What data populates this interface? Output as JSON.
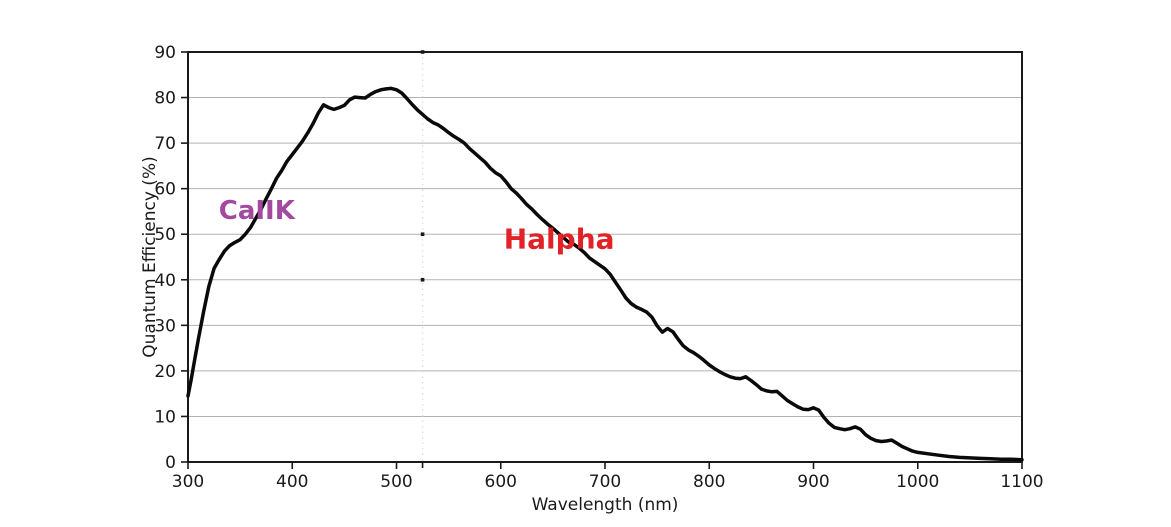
{
  "figure": {
    "background": "#ffffff"
  },
  "chart_data": {
    "type": "line",
    "title": "",
    "xlabel": "Wavelength (nm)",
    "ylabel": "Quantum Efficiency (%)",
    "xlim": [
      300,
      1100
    ],
    "ylim": [
      0,
      90
    ],
    "x_ticks": [
      300,
      400,
      500,
      600,
      700,
      800,
      900,
      1000,
      1100
    ],
    "y_ticks": [
      0,
      10,
      20,
      30,
      40,
      50,
      60,
      70,
      80,
      90
    ],
    "grid": "horizontal-only",
    "grid_color": "#b3b3b3",
    "axis_color": "#1a1a1a",
    "legend": "none",
    "series": [
      {
        "name": "Quantum Efficiency",
        "color": "#0a0a0a",
        "points": [
          [
            300,
            14.5
          ],
          [
            303,
            18
          ],
          [
            306,
            22
          ],
          [
            310,
            27
          ],
          [
            315,
            33
          ],
          [
            320,
            38.5
          ],
          [
            325,
            42.5
          ],
          [
            330,
            44.5
          ],
          [
            335,
            46.3
          ],
          [
            340,
            47.5
          ],
          [
            345,
            48.2
          ],
          [
            350,
            48.8
          ],
          [
            355,
            50
          ],
          [
            360,
            51.5
          ],
          [
            365,
            53.5
          ],
          [
            370,
            55.5
          ],
          [
            375,
            57.8
          ],
          [
            380,
            60
          ],
          [
            385,
            62.3
          ],
          [
            390,
            64
          ],
          [
            395,
            66
          ],
          [
            400,
            67.5
          ],
          [
            405,
            69
          ],
          [
            410,
            70.5
          ],
          [
            415,
            72.3
          ],
          [
            420,
            74.3
          ],
          [
            425,
            76.6
          ],
          [
            430,
            78.4
          ],
          [
            435,
            77.8
          ],
          [
            440,
            77.4
          ],
          [
            445,
            77.8
          ],
          [
            450,
            78.3
          ],
          [
            455,
            79.5
          ],
          [
            460,
            80.1
          ],
          [
            465,
            80
          ],
          [
            470,
            79.9
          ],
          [
            475,
            80.7
          ],
          [
            480,
            81.3
          ],
          [
            485,
            81.7
          ],
          [
            490,
            81.9
          ],
          [
            495,
            82
          ],
          [
            500,
            81.7
          ],
          [
            505,
            81
          ],
          [
            510,
            79.8
          ],
          [
            515,
            78.5
          ],
          [
            520,
            77.3
          ],
          [
            525,
            76.3
          ],
          [
            530,
            75.3
          ],
          [
            535,
            74.5
          ],
          [
            540,
            74
          ],
          [
            545,
            73.2
          ],
          [
            550,
            72.3
          ],
          [
            555,
            71.5
          ],
          [
            560,
            70.8
          ],
          [
            565,
            70
          ],
          [
            570,
            68.8
          ],
          [
            575,
            67.8
          ],
          [
            580,
            66.8
          ],
          [
            585,
            65.8
          ],
          [
            590,
            64.5
          ],
          [
            595,
            63.5
          ],
          [
            600,
            62.8
          ],
          [
            605,
            61.5
          ],
          [
            610,
            60
          ],
          [
            615,
            59
          ],
          [
            620,
            57.8
          ],
          [
            625,
            56.5
          ],
          [
            630,
            55.5
          ],
          [
            635,
            54.3
          ],
          [
            640,
            53.2
          ],
          [
            645,
            52.2
          ],
          [
            650,
            51.3
          ],
          [
            655,
            50.3
          ],
          [
            660,
            49.3
          ],
          [
            665,
            48.3
          ],
          [
            670,
            47.8
          ],
          [
            675,
            47
          ],
          [
            680,
            46
          ],
          [
            685,
            44.8
          ],
          [
            690,
            44
          ],
          [
            695,
            43.2
          ],
          [
            700,
            42.4
          ],
          [
            705,
            41.2
          ],
          [
            710,
            39.5
          ],
          [
            715,
            37.8
          ],
          [
            720,
            36
          ],
          [
            725,
            34.8
          ],
          [
            730,
            34
          ],
          [
            735,
            33.5
          ],
          [
            740,
            32.9
          ],
          [
            745,
            31.8
          ],
          [
            750,
            29.9
          ],
          [
            755,
            28.5
          ],
          [
            760,
            29.3
          ],
          [
            765,
            28.6
          ],
          [
            770,
            27
          ],
          [
            775,
            25.5
          ],
          [
            780,
            24.6
          ],
          [
            785,
            24
          ],
          [
            790,
            23.2
          ],
          [
            795,
            22.3
          ],
          [
            800,
            21.3
          ],
          [
            805,
            20.5
          ],
          [
            810,
            19.8
          ],
          [
            815,
            19.2
          ],
          [
            820,
            18.7
          ],
          [
            825,
            18.4
          ],
          [
            830,
            18.3
          ],
          [
            835,
            18.7
          ],
          [
            840,
            17.9
          ],
          [
            845,
            17
          ],
          [
            850,
            16
          ],
          [
            855,
            15.6
          ],
          [
            860,
            15.4
          ],
          [
            865,
            15.5
          ],
          [
            870,
            14.5
          ],
          [
            875,
            13.5
          ],
          [
            880,
            12.8
          ],
          [
            885,
            12.1
          ],
          [
            890,
            11.6
          ],
          [
            895,
            11.5
          ],
          [
            900,
            11.9
          ],
          [
            905,
            11.4
          ],
          [
            910,
            9.8
          ],
          [
            915,
            8.5
          ],
          [
            920,
            7.6
          ],
          [
            925,
            7.3
          ],
          [
            930,
            7.1
          ],
          [
            935,
            7.3
          ],
          [
            940,
            7.7
          ],
          [
            945,
            7.2
          ],
          [
            950,
            6
          ],
          [
            955,
            5.2
          ],
          [
            960,
            4.7
          ],
          [
            965,
            4.5
          ],
          [
            970,
            4.6
          ],
          [
            975,
            4.8
          ],
          [
            980,
            4.1
          ],
          [
            985,
            3.4
          ],
          [
            990,
            2.9
          ],
          [
            995,
            2.4
          ],
          [
            1000,
            2.1
          ],
          [
            1010,
            1.8
          ],
          [
            1020,
            1.5
          ],
          [
            1030,
            1.2
          ],
          [
            1040,
            1
          ],
          [
            1050,
            0.9
          ],
          [
            1060,
            0.8
          ],
          [
            1070,
            0.7
          ],
          [
            1080,
            0.6
          ],
          [
            1090,
            0.6
          ],
          [
            1100,
            0.5
          ]
        ]
      }
    ],
    "annotations": [
      {
        "text": "CaIIK",
        "x": 366,
        "y": 55.3,
        "color": "#a34aa0",
        "size": 26
      },
      {
        "text": "Halpha",
        "x": 656,
        "y": 49,
        "color": "#e12226",
        "size": 28
      }
    ],
    "marker_line": {
      "x": 525,
      "style": "dotted",
      "color": "#dcdcdc",
      "dot_ys": [
        90,
        50,
        40
      ],
      "dot_color": "#1a1a1a"
    }
  }
}
